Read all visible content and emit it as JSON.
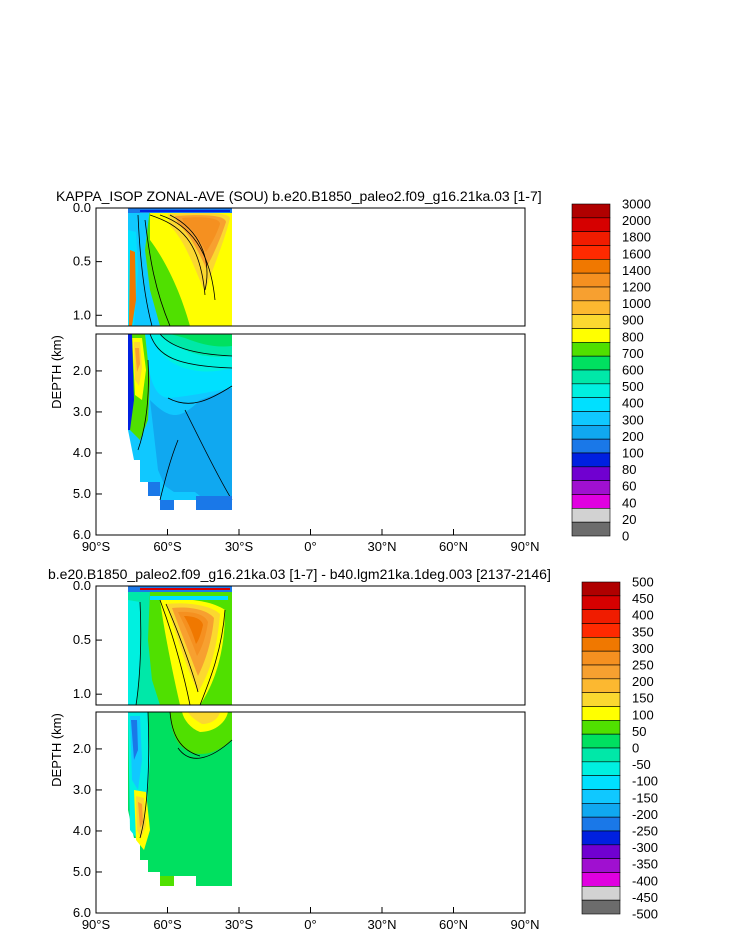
{
  "chart_data": [
    {
      "type": "contour",
      "title": "KAPPA_ISOP ZONAL-AVE (SOU) b.e20.B1850_paleo2.f09_g16.21ka.03 [1-7]",
      "ylabel": "DEPTH (km)",
      "xlim": [
        -90,
        90
      ],
      "ylim": [
        6.0,
        0.0
      ],
      "xticks": [
        "90°S",
        "60°S",
        "30°S",
        "0°",
        "30°N",
        "60°N",
        "90°N"
      ],
      "yticks_upper": [
        "0.0",
        "0.5",
        "1.0"
      ],
      "yticks_lower": [
        "2.0",
        "3.0",
        "4.0",
        "5.0",
        "6.0"
      ],
      "data_extent_lat": [
        -78,
        -34
      ],
      "colorbar_levels": [
        "3000",
        "2000",
        "1800",
        "1600",
        "1400",
        "1200",
        "1000",
        "900",
        "800",
        "700",
        "600",
        "500",
        "400",
        "300",
        "200",
        "100",
        "80",
        "60",
        "40",
        "20",
        "0"
      ],
      "colorbar_colors": [
        "#b00000",
        "#d60000",
        "#f01c00",
        "#ff2a00",
        "#f07800",
        "#f59020",
        "#f7a030",
        "#fcb830",
        "#fbd830",
        "#ffff00",
        "#50e000",
        "#00e060",
        "#00e8a8",
        "#00f0e0",
        "#00e0ff",
        "#10c8ff",
        "#10a8f0",
        "#1a78e8",
        "#0020e0",
        "#7000d0",
        "#a010d0",
        "#e000e0",
        "#d2d2d2",
        "#6c6c6c"
      ]
    },
    {
      "type": "contour",
      "title": "b.e20.B1850_paleo2.f09_g16.21ka.03 [1-7] - b40.lgm21ka.1deg.003 [2137-2146]",
      "ylabel": "DEPTH (km)",
      "xlim": [
        -90,
        90
      ],
      "ylim": [
        6.0,
        0.0
      ],
      "xticks": [
        "90°S",
        "60°S",
        "30°S",
        "0°",
        "30°N",
        "60°N",
        "90°N"
      ],
      "yticks_upper": [
        "0.0",
        "0.5",
        "1.0"
      ],
      "yticks_lower": [
        "2.0",
        "3.0",
        "4.0",
        "5.0",
        "6.0"
      ],
      "data_extent_lat": [
        -78,
        -34
      ],
      "colorbar_levels": [
        "500",
        "450",
        "400",
        "350",
        "300",
        "250",
        "200",
        "150",
        "100",
        "50",
        "0",
        "-50",
        "-100",
        "-150",
        "-200",
        "-250",
        "-300",
        "-350",
        "-400",
        "-450",
        "-500"
      ],
      "colorbar_colors": [
        "#b00000",
        "#d60000",
        "#f01c00",
        "#ff2a00",
        "#f07800",
        "#f59020",
        "#f7a030",
        "#fcb830",
        "#fbd830",
        "#ffff00",
        "#50e000",
        "#00e060",
        "#00e8a8",
        "#00f0e0",
        "#00e0ff",
        "#10c8ff",
        "#10a8f0",
        "#1a78e8",
        "#0020e0",
        "#7000d0",
        "#a010d0",
        "#e000e0",
        "#d2d2d2",
        "#6c6c6c"
      ]
    }
  ]
}
